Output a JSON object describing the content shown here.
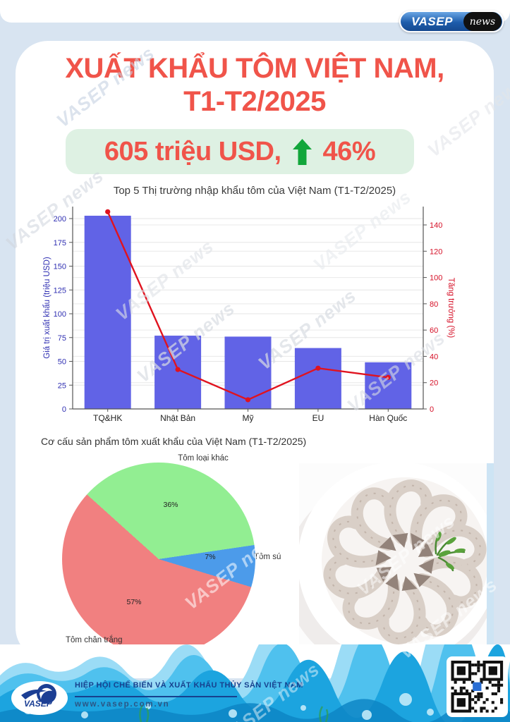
{
  "page": {
    "watermark": "VASEP news"
  },
  "header": {
    "brand": {
      "name": "VASEP",
      "suffix": "news"
    },
    "title_line1": "XUẤT KHẨU TÔM VIỆT NAM,",
    "title_line2": "T1-T2/2025",
    "stat": {
      "value": "605 triệu USD,",
      "growth": "46%",
      "arrow_color": "#12A63B"
    }
  },
  "chart_data": [
    {
      "type": "bar",
      "title": "Top 5 Thị trường nhập khẩu tôm của Việt Nam (T1-T2/2025)",
      "categories": [
        "TQ&HK",
        "Nhật Bản",
        "Mỹ",
        "EU",
        "Hàn Quốc"
      ],
      "series": [
        {
          "name": "Giá trị xuất khẩu (triệu USD)",
          "type": "bar",
          "axis": "left",
          "values": [
            203,
            77,
            76,
            64,
            49
          ],
          "color": "#6163E6"
        },
        {
          "name": "Tăng trưởng (%)",
          "type": "line",
          "axis": "right",
          "values": [
            150,
            30,
            7,
            31,
            24
          ],
          "color": "#E0131F"
        }
      ],
      "left_axis": {
        "label": "Giá trị xuất khẩu (triệu USD)",
        "ticks": [
          0,
          25,
          50,
          75,
          100,
          125,
          150,
          175,
          200
        ],
        "range": [
          0,
          213
        ],
        "color": "#2F2FB2"
      },
      "right_axis": {
        "label": "Tăng trưởng (%)",
        "ticks": [
          0,
          20,
          40,
          60,
          80,
          100,
          120,
          140
        ],
        "range": [
          0,
          154
        ],
        "color": "#D50F26"
      },
      "grid": true,
      "legend": "none"
    },
    {
      "type": "pie",
      "title": "Cơ cấu sản phẩm tôm xuất khẩu của Việt Nam (T1-T2/2025)",
      "start_angle_css_deg": -48,
      "slices": [
        {
          "label": "Tôm loại khác",
          "value": 36,
          "pct": "36%",
          "color": "#92EE92"
        },
        {
          "label": "Tôm sú",
          "value": 7,
          "pct": "7%",
          "color": "#4C9BEA"
        },
        {
          "label": "Tôm chân trắng",
          "value": 57,
          "pct": "57%",
          "color": "#F18080"
        }
      ]
    }
  ],
  "photo": {
    "alt": "shrimp-plate"
  },
  "footer": {
    "logo_text": "VASEP",
    "org_name": "HIỆP HỘI CHẾ BIẾN VÀ XUẤT KHẨU THỦY SẢN VIỆT NAM",
    "website": "www.vasep.com.vn"
  }
}
